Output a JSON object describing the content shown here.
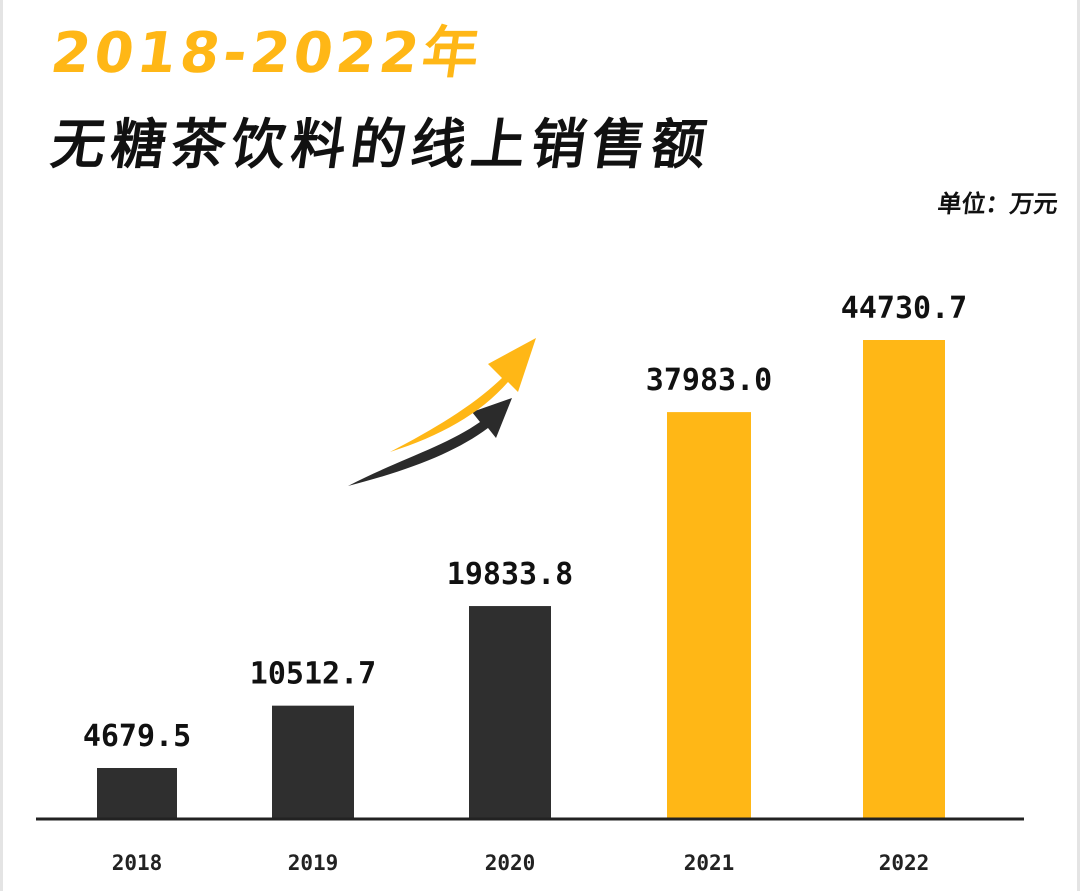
{
  "header": {
    "title_line1": "2018-2022年",
    "title_line2": "无糖茶饮料的线上销售额",
    "unit": "单位：万元"
  },
  "colors": {
    "accent": "#ffb716",
    "dark_bar": "#2f2f2f",
    "text": "#111111"
  },
  "decoration": {
    "icon": "growth-arrows-icon"
  },
  "chart_data": {
    "type": "bar",
    "title": "2018-2022年 无糖茶饮料的线上销售额",
    "unit": "单位：万元",
    "categories": [
      "2018",
      "2019",
      "2020",
      "2021",
      "2022"
    ],
    "values": [
      4679.5,
      10512.7,
      19833.8,
      37983.0,
      44730.7
    ],
    "value_labels": [
      "4679.5",
      "10512.7",
      "19833.8",
      "37983.0",
      "44730.7"
    ],
    "bar_colors": [
      "#2f2f2f",
      "#2f2f2f",
      "#2f2f2f",
      "#ffb716",
      "#ffb716"
    ],
    "ylim": [
      0,
      50000
    ],
    "grid": false,
    "legend": "none"
  }
}
